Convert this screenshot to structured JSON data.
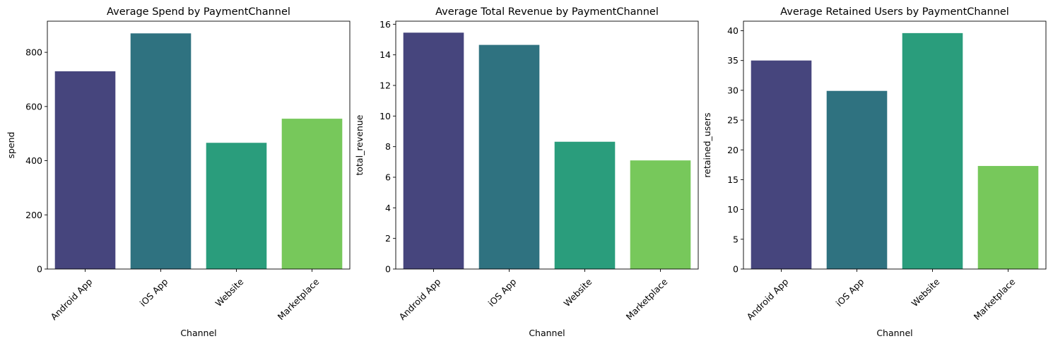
{
  "chart_data": [
    {
      "type": "bar",
      "title": "Average Spend by PaymentChannel",
      "xlabel": "Channel",
      "ylabel": "spend",
      "categories": [
        "Android App",
        "iOS App",
        "Website",
        "Marketplace"
      ],
      "values": [
        730,
        870,
        466,
        555
      ],
      "ylim": [
        0,
        915
      ],
      "yticks": [
        0,
        200,
        400,
        600,
        800
      ],
      "grid": false
    },
    {
      "type": "bar",
      "title": "Average Total Revenue by PaymentChannel",
      "xlabel": "Channel",
      "ylabel": "total_revenue",
      "categories": [
        "Android App",
        "iOS App",
        "Website",
        "Marketplace"
      ],
      "values": [
        15.45,
        14.65,
        8.32,
        7.1
      ],
      "ylim": [
        0,
        16.2
      ],
      "yticks": [
        0,
        2,
        4,
        6,
        8,
        10,
        12,
        14,
        16
      ],
      "grid": false
    },
    {
      "type": "bar",
      "title": "Average Retained Users by PaymentChannel",
      "xlabel": "Channel",
      "ylabel": "retained_users",
      "categories": [
        "Android App",
        "iOS App",
        "Website",
        "Marketplace"
      ],
      "values": [
        35.0,
        29.9,
        39.6,
        17.3
      ],
      "ylim": [
        0,
        41.6
      ],
      "yticks": [
        0,
        5,
        10,
        15,
        20,
        25,
        30,
        35,
        40
      ],
      "grid": false
    }
  ],
  "colors": {
    "bars": [
      "#46457d",
      "#2f7280",
      "#2a9d7c",
      "#77c85b"
    ],
    "axis": "#000000",
    "background": "#ffffff"
  }
}
